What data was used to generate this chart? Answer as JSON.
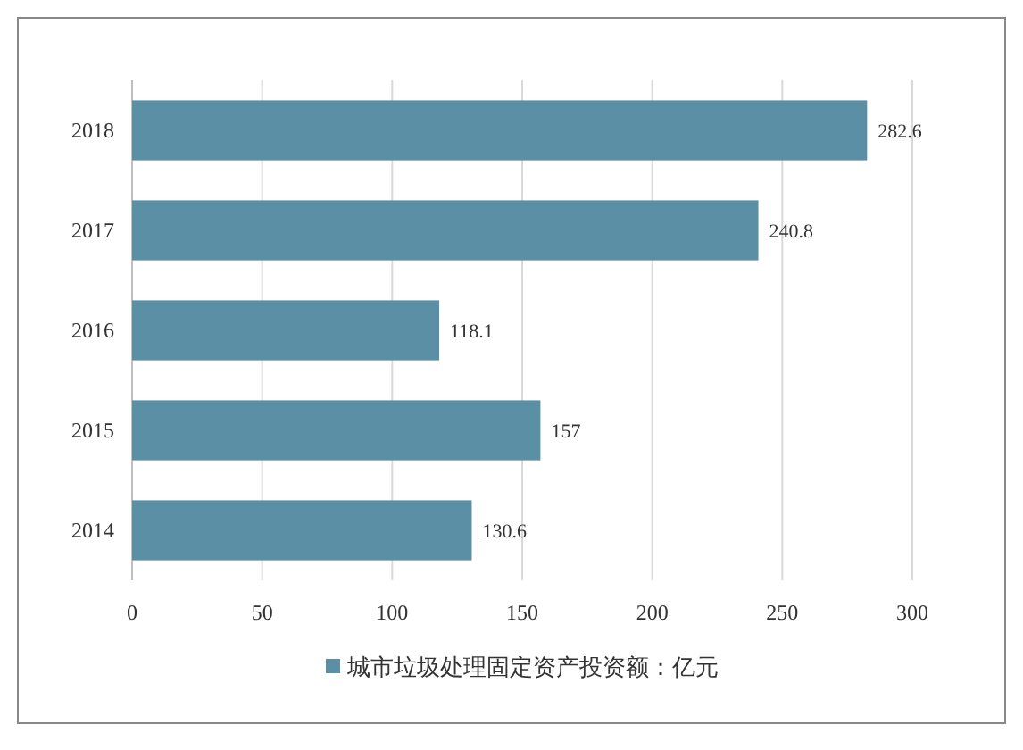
{
  "chart_data": {
    "type": "bar",
    "orientation": "horizontal",
    "categories": [
      "2018",
      "2017",
      "2016",
      "2015",
      "2014"
    ],
    "series": [
      {
        "name": "城市垃圾处理固定资产投资额：亿元",
        "color": "#5b8fa6",
        "values": [
          282.6,
          240.8,
          118.1,
          157,
          130.6
        ]
      }
    ],
    "xlim": [
      0,
      300
    ],
    "xticks": [
      0,
      50,
      100,
      150,
      200,
      250,
      300
    ],
    "grid": "x",
    "data_labels": true,
    "legend": "bottom"
  }
}
